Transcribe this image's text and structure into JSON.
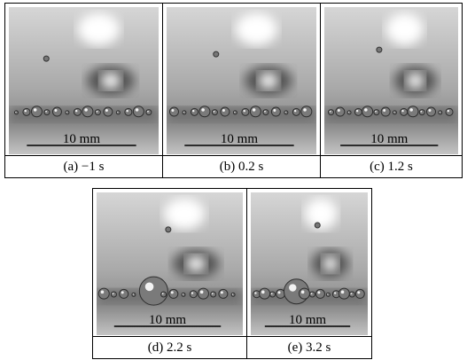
{
  "panels": [
    {
      "caption": "(a) −1 s",
      "scale_label": "10 mm"
    },
    {
      "caption": "(b) 0.2 s",
      "scale_label": "10 mm"
    },
    {
      "caption": "(c) 1.2 s",
      "scale_label": "10 mm"
    },
    {
      "caption": "(d) 2.2 s",
      "scale_label": "10 mm"
    },
    {
      "caption": "(e) 3.2 s",
      "scale_label": "10 mm"
    }
  ]
}
